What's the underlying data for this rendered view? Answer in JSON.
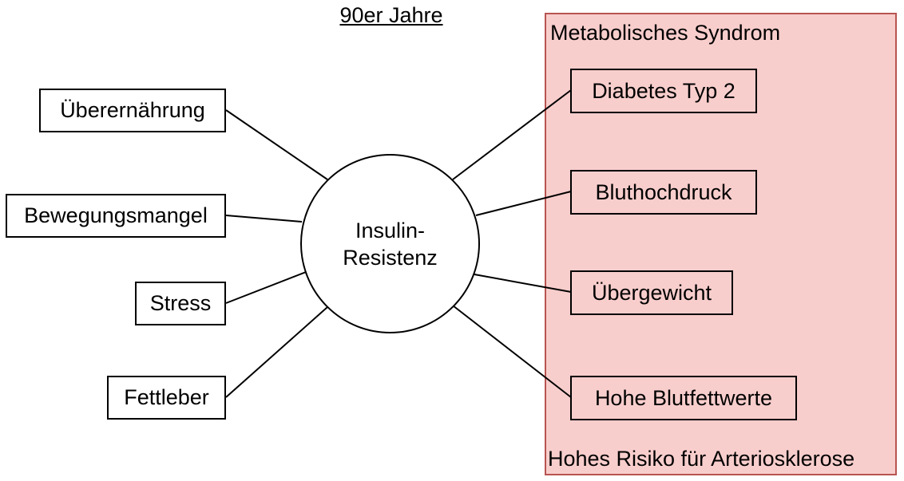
{
  "title": "90er Jahre",
  "center": {
    "line1": "Insulin-",
    "line2": "Resistenz"
  },
  "causes": [
    "Überernährung",
    "Bewegungsmangel",
    "Stress",
    "Fettleber"
  ],
  "syndrome_group": {
    "title": "Metabolisches Syndrom",
    "items": [
      "Diabetes Typ 2",
      "Bluthochdruck",
      "Übergewicht",
      "Hohe Blutfettwerte"
    ],
    "footer": "Hohes Risiko für Arteriosklerose"
  },
  "colors": {
    "group_fill": "#f8cecc",
    "group_border": "#b85450",
    "node_border": "#000000",
    "node_fill": "#ffffff"
  }
}
